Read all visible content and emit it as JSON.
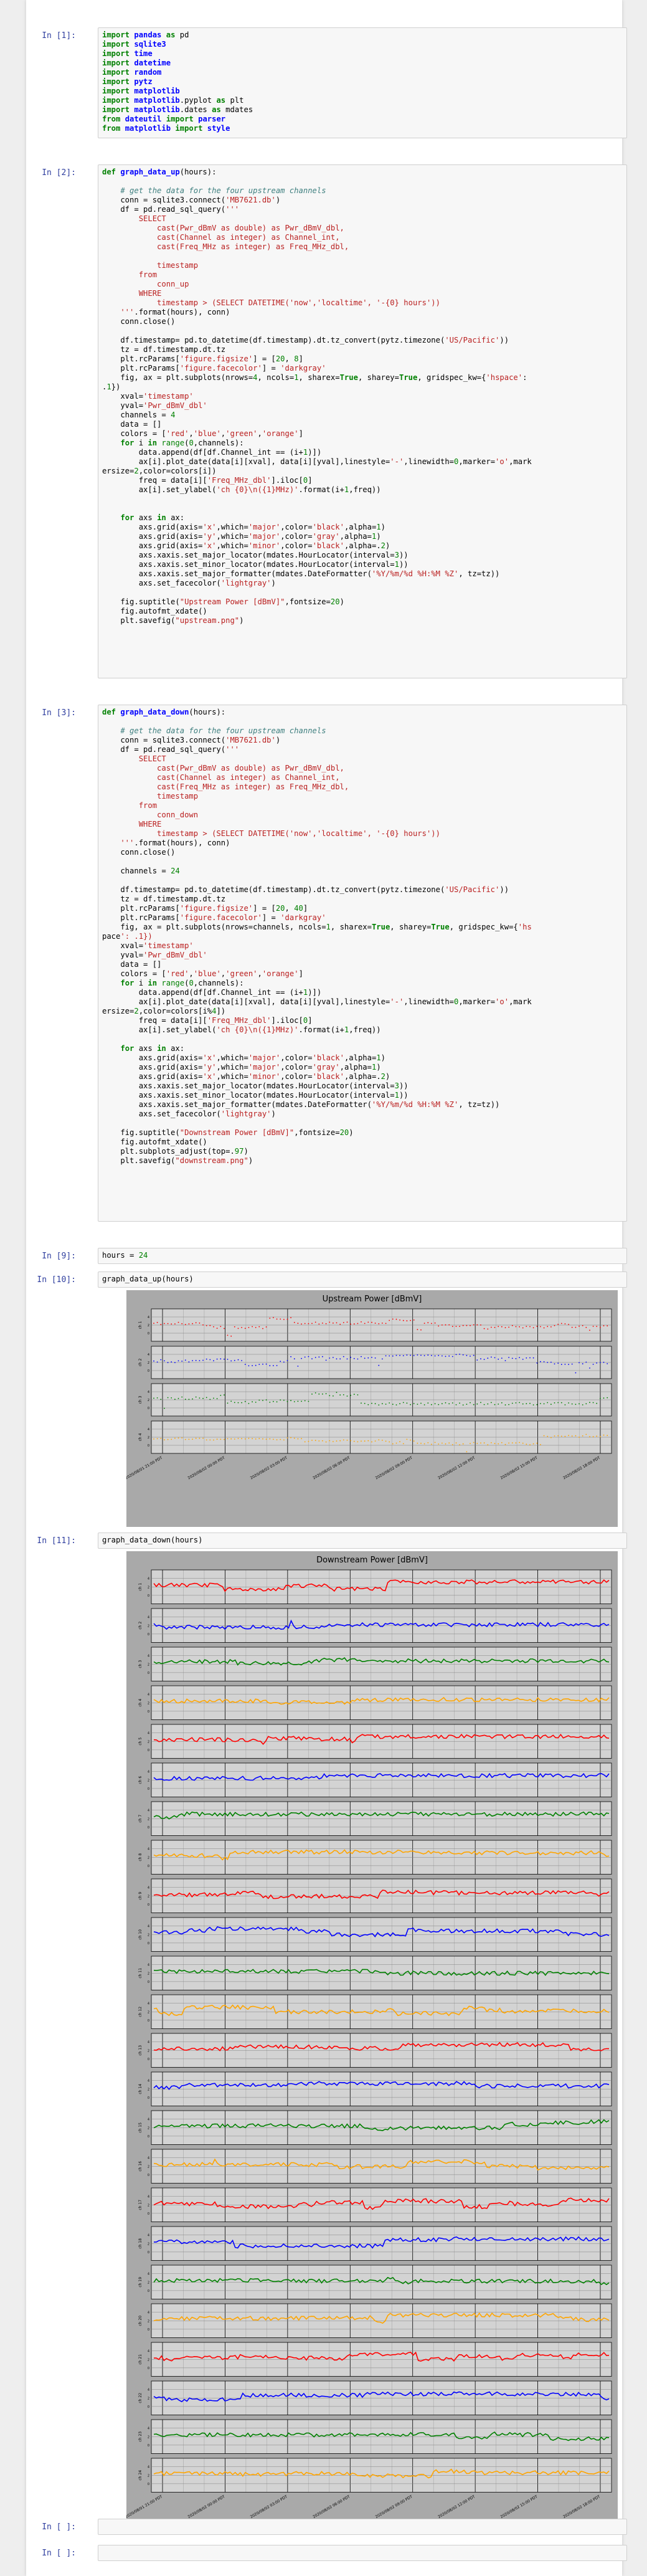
{
  "notebook": {
    "cells": [
      {
        "id": "c1",
        "prompt": "In [1]:",
        "code": "import pandas as pd\nimport sqlite3\nimport time\nimport datetime\nimport random\nimport pytz\nimport matplotlib\nimport matplotlib.pyplot as plt\nimport matplotlib.dates as mdates\nfrom dateutil import parser\nfrom matplotlib import style"
      },
      {
        "id": "c2",
        "prompt": "In [2]:",
        "code": "def graph_data_up(hours):\n\n    # get the data for the four upstream channels\n    conn = sqlite3.connect('MB7621.db')\n    df = pd.read_sql_query('''\n        SELECT\n            cast(Pwr_dBmV as double) as Pwr_dBmV_dbl,\n            cast(Channel as integer) as Channel_int,\n            cast(Freq_MHz as integer) as Freq_MHz_dbl,\n\n            timestamp\n        from\n            conn_up\n        WHERE\n            timestamp > (SELECT DATETIME('now','localtime', '-{0} hours'))\n    '''.format(hours), conn)\n    conn.close()\n\n    df.timestamp= pd.to_datetime(df.timestamp).dt.tz_convert(pytz.timezone('US/Pacific'))\n    tz = df.timestamp.dt.tz\n    plt.rcParams['figure.figsize'] = [20, 8]\n    plt.rcParams['figure.facecolor'] = 'darkgray'\n    fig, ax = plt.subplots(nrows=4, ncols=1, sharex=True, sharey=True, gridspec_kw={'hspace':\n.1})\n    xval='timestamp'\n    yval='Pwr_dBmV_dbl'\n    channels = 4\n    data = []\n    colors = ['red','blue','green','orange']\n    for i in range(0,channels):\n        data.append(df[df.Channel_int == (i+1)])\n        ax[i].plot_date(data[i][xval], data[i][yval],linestyle='-',linewidth=0,marker='o',mark\nersize=2,color=colors[i])\n        freq = data[i]['Freq_MHz_dbl'].iloc[0]\n        ax[i].set_ylabel('ch {0}\\n({1}MHz)'.format(i+1,freq))\n\n\n    for axs in ax:\n        axs.grid(axis='x',which='major',color='black',alpha=1)\n        axs.grid(axis='y',which='major',color='gray',alpha=1)\n        axs.grid(axis='x',which='minor',color='black',alpha=.2)\n        axs.xaxis.set_major_locator(mdates.HourLocator(interval=3))\n        axs.xaxis.set_minor_locator(mdates.HourLocator(interval=1))\n        axs.xaxis.set_major_formatter(mdates.DateFormatter('%Y/%m/%d %H:%M %Z', tz=tz))\n        axs.set_facecolor('lightgray')\n\n    fig.suptitle(\"Upstream Power [dBmV]\",fontsize=20)\n    fig.autofmt_xdate()\n    plt.savefig(\"upstream.png\")"
      },
      {
        "id": "c3",
        "prompt": "In [3]:",
        "code": "def graph_data_down(hours):\n\n    # get the data for the four upstream channels\n    conn = sqlite3.connect('MB7621.db')\n    df = pd.read_sql_query('''\n        SELECT\n            cast(Pwr_dBmV as double) as Pwr_dBmV_dbl,\n            cast(Channel as integer) as Channel_int,\n            cast(Freq_MHz as integer) as Freq_MHz_dbl,\n            timestamp\n        from\n            conn_down\n        WHERE\n            timestamp > (SELECT DATETIME('now','localtime', '-{0} hours'))\n    '''.format(hours), conn)\n    conn.close()\n\n    channels = 24\n\n    df.timestamp= pd.to_datetime(df.timestamp).dt.tz_convert(pytz.timezone('US/Pacific'))\n    tz = df.timestamp.dt.tz\n    plt.rcParams['figure.figsize'] = [20, 40]\n    plt.rcParams['figure.facecolor'] = 'darkgray'\n    fig, ax = plt.subplots(nrows=channels, ncols=1, sharex=True, sharey=True, gridspec_kw={'hs\npace': .1})\n    xval='timestamp'\n    yval='Pwr_dBmV_dbl'\n    data = []\n    colors = ['red','blue','green','orange']\n    for i in range(0,channels):\n        data.append(df[df.Channel_int == (i+1)])\n        ax[i].plot_date(data[i][xval], data[i][yval],linestyle='-',linewidth=0,marker='o',mark\nersize=2,color=colors[i%4])\n        freq = data[i]['Freq_MHz_dbl'].iloc[0]\n        ax[i].set_ylabel('ch {0}\\n({1}MHz)'.format(i+1,freq))\n\n    for axs in ax:\n        axs.grid(axis='x',which='major',color='black',alpha=1)\n        axs.grid(axis='y',which='major',color='gray',alpha=1)\n        axs.grid(axis='x',which='minor',color='black',alpha=.2)\n        axs.xaxis.set_major_locator(mdates.HourLocator(interval=3))\n        axs.xaxis.set_minor_locator(mdates.HourLocator(interval=1))\n        axs.xaxis.set_major_formatter(mdates.DateFormatter('%Y/%m/%d %H:%M %Z', tz=tz))\n        axs.set_facecolor('lightgray')\n\n    fig.suptitle(\"Downstream Power [dBmV]\",fontsize=20)\n    fig.autofmt_xdate()\n    plt.subplots_adjust(top=.97)\n    plt.savefig(\"downstream.png\")"
      },
      {
        "id": "c4",
        "prompt": "In [9]:",
        "code": "hours = 24"
      },
      {
        "id": "c5",
        "prompt": "In [10]:",
        "code": "graph_data_up(hours)"
      },
      {
        "id": "c6",
        "prompt": "In [11]:",
        "code": "graph_data_down(hours)"
      },
      {
        "id": "c7",
        "prompt": "In [ ]:",
        "code": ""
      },
      {
        "id": "c8",
        "prompt": "In [ ]:",
        "code": ""
      }
    ]
  },
  "chart_data": [
    {
      "type": "scatter",
      "title": "Upstream Power [dBmV]",
      "series": [
        {
          "label": "ch 1",
          "color": "red",
          "level": 0.55,
          "noise": 0.25
        },
        {
          "label": "ch 2",
          "color": "blue",
          "level": 0.55,
          "noise": 0.25
        },
        {
          "label": "ch 3",
          "color": "green",
          "level": 0.55,
          "noise": 0.25
        },
        {
          "label": "ch 4",
          "color": "orange",
          "level": 0.45,
          "noise": 0.15
        }
      ],
      "xticks": [
        "2020/08/01 21:00 PDT",
        "2020/08/02 00:00 PDT",
        "2020/08/02 03:00 PDT",
        "2020/08/02 06:00 PDT",
        "2020/08/02 09:00 PDT",
        "2020/08/02 12:00 PDT",
        "2020/08/02 15:00 PDT",
        "2020/08/02 18:00 PDT"
      ],
      "grid": true,
      "colors": {
        "figure": "#a9a9a9",
        "axes": "#d3d3d3"
      }
    },
    {
      "type": "line",
      "title": "Downstream Power [dBmV]",
      "panels": 24,
      "colors_cycle": [
        "red",
        "blue",
        "green",
        "orange"
      ],
      "xticks": [
        "2020/08/01 21:00 PDT",
        "2020/08/02 00:00 PDT",
        "2020/08/02 03:00 PDT",
        "2020/08/02 06:00 PDT",
        "2020/08/02 09:00 PDT",
        "2020/08/02 12:00 PDT",
        "2020/08/02 15:00 PDT",
        "2020/08/02 18:00 PDT"
      ],
      "grid": true,
      "colors": {
        "figure": "#a9a9a9",
        "axes": "#d3d3d3"
      }
    }
  ]
}
